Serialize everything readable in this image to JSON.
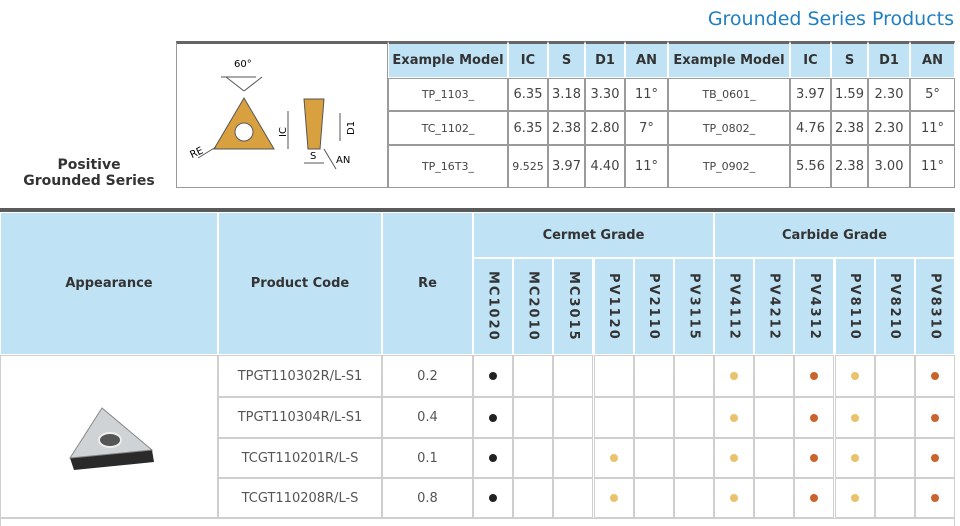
{
  "title": "Grounded Series Products",
  "series_label": [
    "Positive",
    "Grounded Series"
  ],
  "diagram": {
    "labels": {
      "angle": "60°",
      "re": "RE",
      "ic": "IC",
      "s": "S",
      "d1": "D1",
      "an": "AN"
    }
  },
  "spec_table": {
    "header": [
      "Example Model",
      "IC",
      "S",
      "D1",
      "AN",
      "Example Model",
      "IC",
      "S",
      "D1",
      "AN"
    ],
    "rows": [
      [
        "TP_1103_",
        "6.35",
        "3.18",
        "3.30",
        "11°",
        "TB_0601_",
        "3.97",
        "1.59",
        "2.30",
        "5°"
      ],
      [
        "TC_1102_",
        "6.35",
        "2.38",
        "2.80",
        "7°",
        "TP_0802_",
        "4.76",
        "2.38",
        "2.30",
        "11°"
      ],
      [
        "TP_16T3_",
        "9.525",
        "3.97",
        "4.40",
        "11°",
        "TP_0902_",
        "5.56",
        "2.38",
        "3.00",
        "11°"
      ]
    ]
  },
  "main_table": {
    "headers": {
      "appearance": "Appearance",
      "product_code": "Product Code",
      "re": "Re",
      "groups": [
        {
          "name": "Cermet Grade",
          "span": 6
        },
        {
          "name": "Carbide Grade",
          "span": 6
        }
      ]
    },
    "grades": [
      {
        "name": "MC1020",
        "color": "#222222"
      },
      {
        "name": "MC2010",
        "color": "#222222"
      },
      {
        "name": "MC3015",
        "color": "#222222"
      },
      {
        "name": "PV1120",
        "color": "#e9c26c"
      },
      {
        "name": "PV2110",
        "color": "#e9c26c"
      },
      {
        "name": "PV3115",
        "color": "#e9c26c"
      },
      {
        "name": "PV4112",
        "color": "#e9c26c"
      },
      {
        "name": "PV4212",
        "color": "#e9c26c"
      },
      {
        "name": "PV4312",
        "color": "#c9652c"
      },
      {
        "name": "PV8110",
        "color": "#e9c26c"
      },
      {
        "name": "PV8210",
        "color": "#e9c26c"
      },
      {
        "name": "PV8310",
        "color": "#c9652c"
      }
    ],
    "rows": [
      {
        "code": "TPGT110302R/L-S1",
        "re": "0.2",
        "dots": [
          true,
          false,
          false,
          false,
          false,
          false,
          true,
          false,
          true,
          true,
          false,
          true
        ]
      },
      {
        "code": "TPGT110304R/L-S1",
        "re": "0.4",
        "dots": [
          true,
          false,
          false,
          false,
          false,
          false,
          true,
          false,
          true,
          true,
          false,
          true
        ]
      },
      {
        "code": "TCGT110201R/L-S",
        "re": "0.1",
        "dots": [
          true,
          false,
          false,
          true,
          false,
          false,
          true,
          false,
          true,
          true,
          false,
          true
        ]
      },
      {
        "code": "TCGT110208R/L-S",
        "re": "0.8",
        "dots": [
          true,
          false,
          false,
          true,
          false,
          false,
          true,
          false,
          true,
          true,
          false,
          true
        ]
      }
    ]
  }
}
